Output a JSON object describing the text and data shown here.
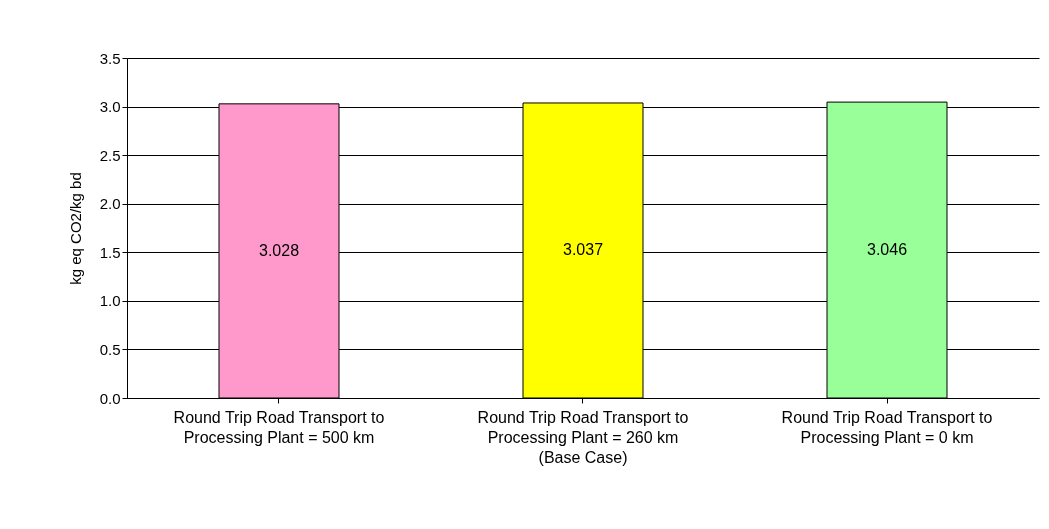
{
  "chart_data": {
    "type": "bar",
    "ylabel": "kg eq CO2/kg bd",
    "categories": [
      "Round Trip  Road Transport to Processing Plant = 500 km",
      "Round Trip  Road Transport to Processing Plant = 260 km (Base Case)",
      "Round Trip  Road Transport to Processing Plant = 0 km"
    ],
    "values": [
      3.028,
      3.037,
      3.046
    ],
    "colors": [
      "#ff99cc",
      "#ffff00",
      "#99ff99"
    ],
    "ylim": [
      0,
      3.5
    ],
    "yticks": [
      {
        "value": 0,
        "label": "0.0"
      },
      {
        "value": 0.5,
        "label": "0.5"
      },
      {
        "value": 1,
        "label": "1.0"
      },
      {
        "value": 1.5,
        "label": "1.5"
      },
      {
        "value": 2,
        "label": "2.0"
      },
      {
        "value": 2.5,
        "label": "2.5"
      },
      {
        "value": 3,
        "label": "3.0"
      },
      {
        "value": 3.5,
        "label": "3.5"
      }
    ],
    "grid": "y",
    "data_labels": true
  }
}
